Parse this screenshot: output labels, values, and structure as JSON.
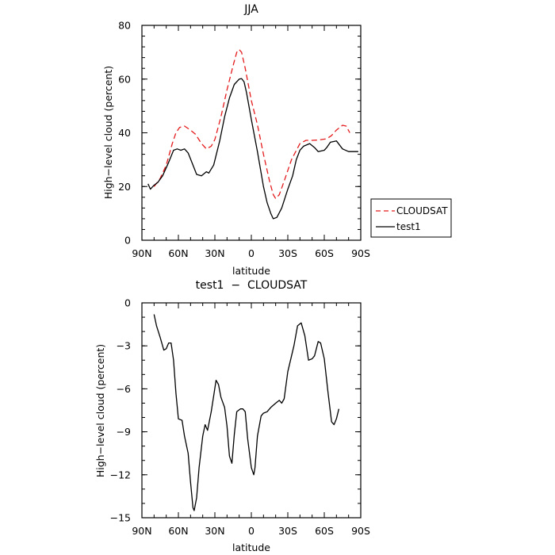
{
  "chart_data": [
    {
      "type": "line",
      "title": "JJA",
      "xlabel": "latitude",
      "ylabel": "High−level cloud (percent)",
      "xlim": [
        90,
        -90
      ],
      "ylim": [
        0,
        80
      ],
      "x_tick_values": [
        90,
        60,
        30,
        0,
        -30,
        -60,
        -90
      ],
      "x_tick_labels": [
        "90N",
        "60N",
        "30N",
        "0",
        "30S",
        "60S",
        "90S"
      ],
      "y_tick_values": [
        0,
        20,
        40,
        60,
        80
      ],
      "y_tick_labels": [
        "0",
        "20",
        "40",
        "60",
        "80"
      ],
      "legend": {
        "placement": "right",
        "entries": [
          "CLOUDSAT",
          "test1"
        ]
      },
      "series": [
        {
          "name": "CLOUDSAT",
          "color": "#e41a1c",
          "dash": "dashed",
          "points": [
            [
              80,
              20
            ],
            [
              75,
              23
            ],
            [
              70,
              28
            ],
            [
              65,
              36
            ],
            [
              62,
              40
            ],
            [
              59,
              42
            ],
            [
              55,
              42.5
            ],
            [
              50,
              41
            ],
            [
              46,
              39.5
            ],
            [
              41,
              36
            ],
            [
              37,
              34
            ],
            [
              33,
              35
            ],
            [
              30,
              37.5
            ],
            [
              25,
              46
            ],
            [
              20,
              56
            ],
            [
              15,
              65
            ],
            [
              12,
              70
            ],
            [
              10,
              71
            ],
            [
              8,
              70
            ],
            [
              5,
              64
            ],
            [
              0,
              52
            ],
            [
              -5,
              43
            ],
            [
              -10,
              32
            ],
            [
              -15,
              22
            ],
            [
              -18,
              17
            ],
            [
              -20,
              15.5
            ],
            [
              -23,
              17
            ],
            [
              -27,
              22
            ],
            [
              -33,
              30
            ],
            [
              -40,
              36
            ],
            [
              -45,
              37.2
            ],
            [
              -50,
              37.2
            ],
            [
              -55,
              37.3
            ],
            [
              -62,
              37.8
            ],
            [
              -66,
              39
            ],
            [
              -70,
              41
            ],
            [
              -75,
              42.8
            ],
            [
              -78,
              42.5
            ],
            [
              -81,
              40
            ]
          ]
        },
        {
          "name": "test1",
          "color": "#000000",
          "dash": "solid",
          "points": [
            [
              85,
              21
            ],
            [
              83,
              19
            ],
            [
              80,
              20.5
            ],
            [
              77,
              21.5
            ],
            [
              73,
              24
            ],
            [
              68,
              29
            ],
            [
              64,
              33.5
            ],
            [
              61,
              34
            ],
            [
              58,
              33.5
            ],
            [
              55,
              34
            ],
            [
              52,
              32.5
            ],
            [
              48,
              28
            ],
            [
              45,
              24.5
            ],
            [
              41,
              24
            ],
            [
              37,
              25.5
            ],
            [
              35,
              25
            ],
            [
              31,
              28
            ],
            [
              26,
              37
            ],
            [
              22,
              46
            ],
            [
              18,
              53
            ],
            [
              14,
              58
            ],
            [
              10,
              60
            ],
            [
              8,
              60.2
            ],
            [
              6,
              59
            ],
            [
              4,
              55
            ],
            [
              0,
              45
            ],
            [
              -5,
              33
            ],
            [
              -10,
              20
            ],
            [
              -13,
              14
            ],
            [
              -16,
              10
            ],
            [
              -18,
              8
            ],
            [
              -21,
              8.5
            ],
            [
              -25,
              12
            ],
            [
              -30,
              19
            ],
            [
              -34,
              24
            ],
            [
              -37,
              30
            ],
            [
              -40,
              33.5
            ],
            [
              -43,
              35
            ],
            [
              -48,
              36
            ],
            [
              -52,
              34.5
            ],
            [
              -55,
              33
            ],
            [
              -60,
              33.5
            ],
            [
              -62,
              34.5
            ],
            [
              -65,
              36.5
            ],
            [
              -70,
              37
            ],
            [
              -75,
              34
            ],
            [
              -80,
              33
            ],
            [
              -85,
              33
            ],
            [
              -88,
              33
            ]
          ]
        }
      ]
    },
    {
      "type": "line",
      "title": "test1  −  CLOUDSAT",
      "xlabel": "latitude",
      "ylabel": "High−level cloud (percent)",
      "xlim": [
        90,
        -90
      ],
      "ylim": [
        -15,
        0
      ],
      "x_tick_values": [
        90,
        60,
        30,
        0,
        -30,
        -60,
        -90
      ],
      "x_tick_labels": [
        "90N",
        "60N",
        "30N",
        "0",
        "30S",
        "60S",
        "90S"
      ],
      "y_tick_values": [
        0,
        -3,
        -6,
        -9,
        -12,
        -15
      ],
      "y_tick_labels": [
        "0",
        "−3",
        "−6",
        "−9",
        "−12",
        "−15"
      ],
      "series": [
        {
          "color": "#000000",
          "dash": "solid",
          "points": [
            [
              80,
              -0.8
            ],
            [
              78,
              -1.6
            ],
            [
              75,
              -2.4
            ],
            [
              72,
              -3.3
            ],
            [
              70,
              -3.2
            ],
            [
              68,
              -2.8
            ],
            [
              66,
              -2.8
            ],
            [
              64,
              -4
            ],
            [
              62,
              -6.3
            ],
            [
              60,
              -8.1
            ],
            [
              57,
              -8.2
            ],
            [
              55,
              -9.3
            ],
            [
              52,
              -10.5
            ],
            [
              50,
              -12.5
            ],
            [
              48,
              -14.3
            ],
            [
              47,
              -14.5
            ],
            [
              45,
              -13.6
            ],
            [
              43,
              -11.5
            ],
            [
              40,
              -9.3
            ],
            [
              38,
              -8.5
            ],
            [
              36,
              -8.9
            ],
            [
              33,
              -7.6
            ],
            [
              31,
              -6.5
            ],
            [
              29,
              -5.4
            ],
            [
              27,
              -5.7
            ],
            [
              25,
              -6.6
            ],
            [
              22,
              -7.3
            ],
            [
              20,
              -8.6
            ],
            [
              18,
              -10.7
            ],
            [
              16,
              -11.2
            ],
            [
              14,
              -9.2
            ],
            [
              12,
              -7.6
            ],
            [
              9,
              -7.4
            ],
            [
              7,
              -7.4
            ],
            [
              5,
              -7.6
            ],
            [
              3,
              -9.5
            ],
            [
              0,
              -11.5
            ],
            [
              -2,
              -12
            ],
            [
              -3,
              -11.5
            ],
            [
              -5,
              -9.3
            ],
            [
              -8,
              -7.9
            ],
            [
              -10,
              -7.7
            ],
            [
              -13,
              -7.6
            ],
            [
              -16,
              -7.3
            ],
            [
              -20,
              -7
            ],
            [
              -23,
              -6.8
            ],
            [
              -25,
              -7
            ],
            [
              -27,
              -6.7
            ],
            [
              -30,
              -4.8
            ],
            [
              -35,
              -3
            ],
            [
              -38,
              -1.6
            ],
            [
              -41,
              -1.4
            ],
            [
              -44,
              -2.3
            ],
            [
              -47,
              -4
            ],
            [
              -50,
              -3.9
            ],
            [
              -52,
              -3.7
            ],
            [
              -55,
              -2.7
            ],
            [
              -57,
              -2.8
            ],
            [
              -60,
              -3.9
            ],
            [
              -63,
              -6.2
            ],
            [
              -66,
              -8.3
            ],
            [
              -68,
              -8.5
            ],
            [
              -70,
              -8.1
            ],
            [
              -72,
              -7.4
            ]
          ]
        }
      ]
    }
  ]
}
